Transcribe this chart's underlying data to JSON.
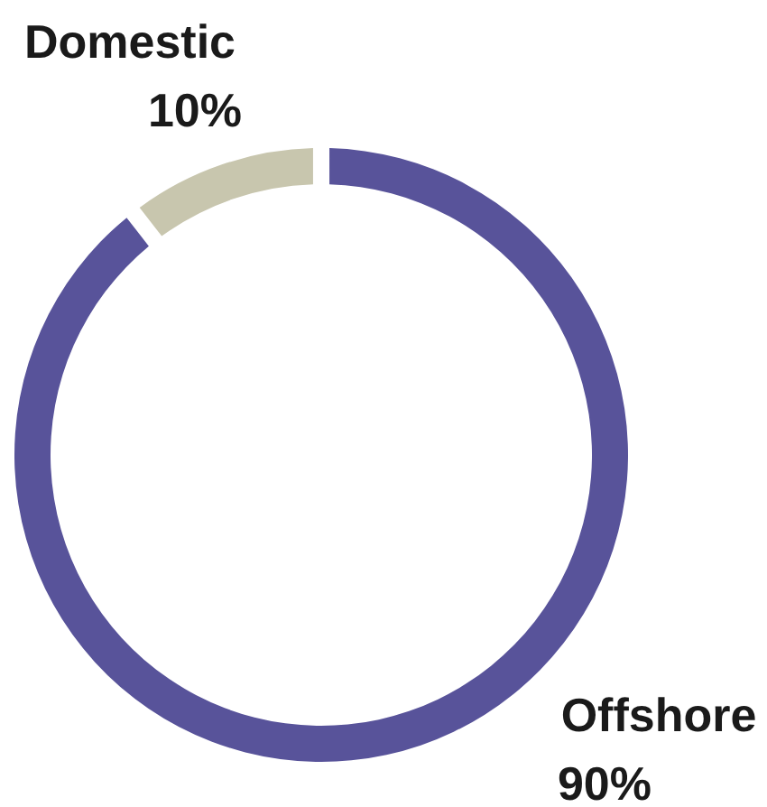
{
  "chart_data": {
    "type": "donut",
    "categories": [
      "Offshore",
      "Domestic"
    ],
    "values": [
      90,
      10
    ],
    "colors": [
      "#58539a",
      "#c8c6ae"
    ],
    "value_labels": [
      "90%",
      "10%"
    ]
  }
}
